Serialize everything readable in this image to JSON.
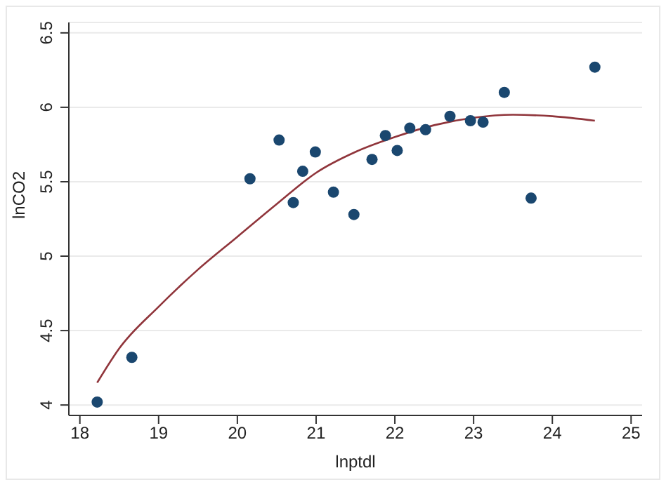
{
  "chart_data": {
    "type": "scatter",
    "xlabel": "lnptdl",
    "ylabel": "lnCO2",
    "xlim": [
      17.86,
      25.14
    ],
    "ylim": [
      3.93,
      6.57
    ],
    "xticks": [
      18,
      19,
      20,
      21,
      22,
      23,
      24,
      25
    ],
    "yticks": [
      4,
      4.5,
      5,
      5.5,
      6,
      6.5
    ],
    "grid": "y",
    "marker": "circle",
    "series": [
      {
        "type": "scatter",
        "color": "#1a476f",
        "x": [
          18.22,
          18.66,
          20.16,
          20.53,
          20.71,
          20.83,
          20.99,
          21.22,
          21.48,
          21.71,
          21.88,
          22.03,
          22.19,
          22.39,
          22.7,
          22.96,
          23.12,
          23.39,
          23.73,
          24.54
        ],
        "values": [
          4.02,
          4.32,
          5.52,
          5.78,
          5.36,
          5.57,
          5.7,
          5.43,
          5.28,
          5.65,
          5.81,
          5.71,
          5.86,
          5.85,
          5.94,
          5.91,
          5.9,
          6.1,
          5.39,
          6.27
        ]
      },
      {
        "type": "line",
        "color": "#90353b",
        "marker": "none",
        "x": [
          18.22,
          18.5,
          19,
          19.5,
          20,
          20.5,
          21,
          21.5,
          22,
          22.5,
          23,
          23.5,
          24,
          24.54
        ],
        "values": [
          4.15,
          4.38,
          4.66,
          4.91,
          5.13,
          5.35,
          5.56,
          5.7,
          5.8,
          5.88,
          5.93,
          5.95,
          5.94,
          5.91
        ]
      }
    ]
  }
}
